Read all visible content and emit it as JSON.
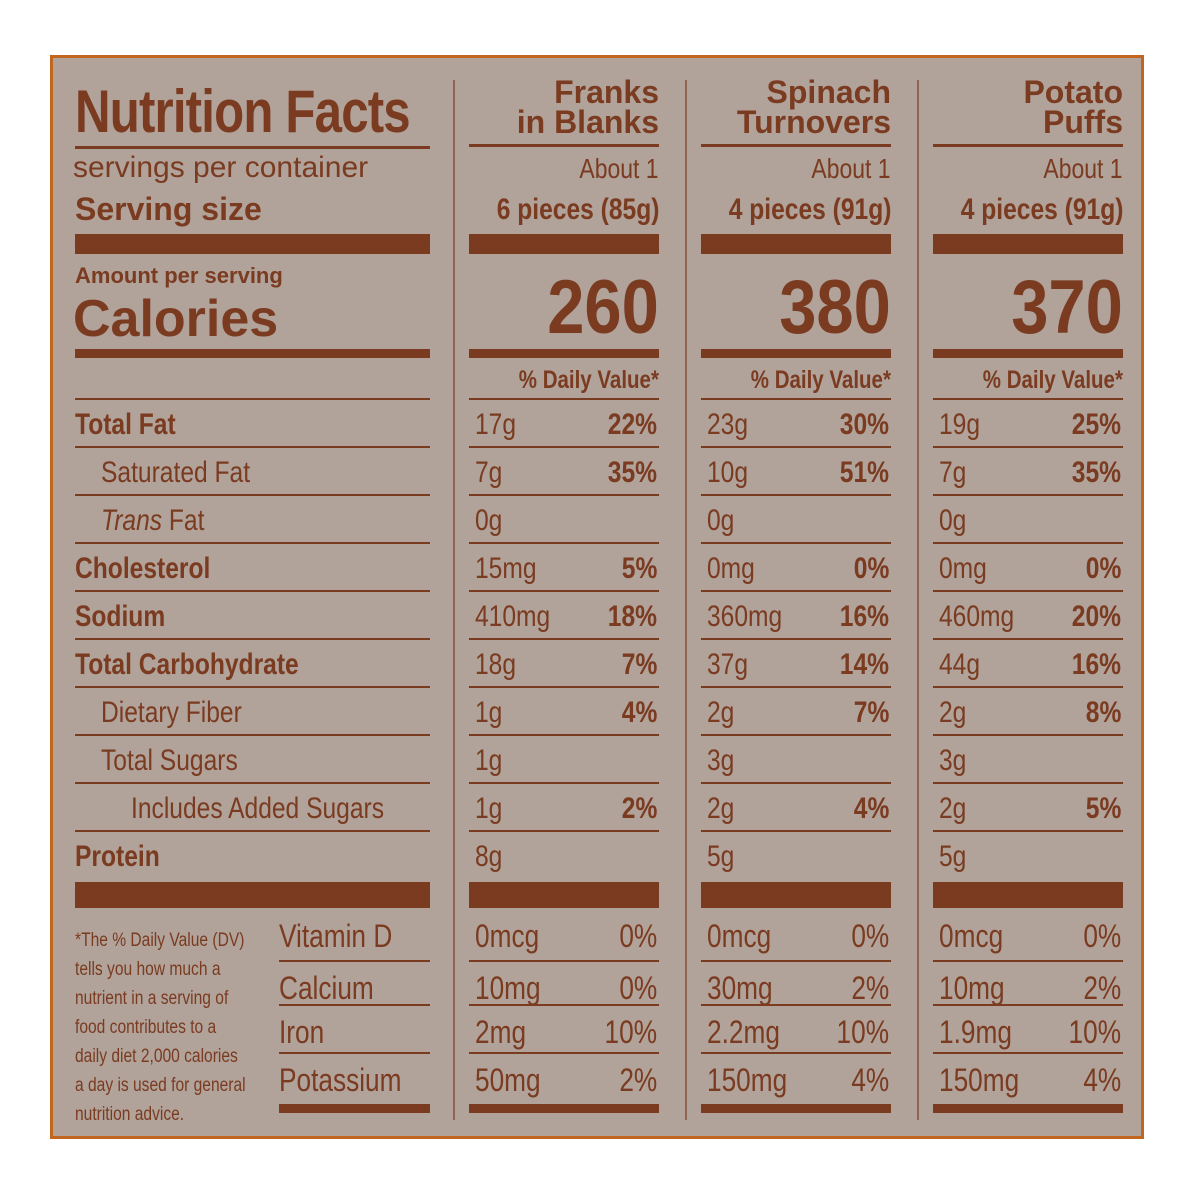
{
  "label": {
    "title": "Nutrition Facts",
    "servings_label": "servings per container",
    "serving_size_label": "Serving size",
    "amount_per_serving": "Amount per serving",
    "calories_label": "Calories",
    "dv_header": "% Daily Value*",
    "footnote": [
      "*The % Daily Value (DV)",
      "tells you how much a",
      "nutrient in a serving of",
      "food contributes to a",
      "daily diet 2,000 calories",
      "a day is used for general",
      "nutrition advice."
    ]
  },
  "nutrients": [
    {
      "label": "Total Fat",
      "style": "bold"
    },
    {
      "label": "Saturated Fat",
      "style": "indent1"
    },
    {
      "label": "Trans",
      "suffix": " Fat",
      "style": "indent1-italic"
    },
    {
      "label": "Cholesterol",
      "style": "bold"
    },
    {
      "label": "Sodium",
      "style": "bold"
    },
    {
      "label": "Total Carbohydrate",
      "style": "bold"
    },
    {
      "label": "Dietary Fiber",
      "style": "indent1"
    },
    {
      "label": "Total Sugars",
      "style": "indent1"
    },
    {
      "label": "Includes Added Sugars",
      "style": "indent2"
    },
    {
      "label": "Protein",
      "style": "bold"
    }
  ],
  "vitamins": [
    "Vitamin D",
    "Calcium",
    "Iron",
    "Potassium"
  ],
  "products": [
    {
      "name_line1": "Franks",
      "name_line2": "in Blanks",
      "servings": "About 1",
      "serving_size": "6 pieces (85g)",
      "calories": "260",
      "nutrients": [
        [
          "17g",
          "22%"
        ],
        [
          "7g",
          "35%"
        ],
        [
          "0g",
          ""
        ],
        [
          "15mg",
          "5%"
        ],
        [
          "410mg",
          "18%"
        ],
        [
          "18g",
          "7%"
        ],
        [
          "1g",
          "4%"
        ],
        [
          "1g",
          ""
        ],
        [
          "1g",
          "2%"
        ],
        [
          "8g",
          ""
        ]
      ],
      "vitamins": [
        [
          "0mcg",
          "0%"
        ],
        [
          "10mg",
          "0%"
        ],
        [
          "2mg",
          "10%"
        ],
        [
          "50mg",
          "2%"
        ]
      ]
    },
    {
      "name_line1": "Spinach",
      "name_line2": "Turnovers",
      "servings": "About 1",
      "serving_size": "4 pieces (91g)",
      "calories": "380",
      "nutrients": [
        [
          "23g",
          "30%"
        ],
        [
          "10g",
          "51%"
        ],
        [
          "0g",
          ""
        ],
        [
          "0mg",
          "0%"
        ],
        [
          "360mg",
          "16%"
        ],
        [
          "37g",
          "14%"
        ],
        [
          "2g",
          "7%"
        ],
        [
          "3g",
          ""
        ],
        [
          "2g",
          "4%"
        ],
        [
          "5g",
          ""
        ]
      ],
      "vitamins": [
        [
          "0mcg",
          "0%"
        ],
        [
          "30mg",
          "2%"
        ],
        [
          "2.2mg",
          "10%"
        ],
        [
          "150mg",
          "4%"
        ]
      ]
    },
    {
      "name_line1": "Potato",
      "name_line2": "Puffs",
      "servings": "About 1",
      "serving_size": "4 pieces (91g)",
      "calories": "370",
      "nutrients": [
        [
          "19g",
          "25%"
        ],
        [
          "7g",
          "35%"
        ],
        [
          "0g",
          ""
        ],
        [
          "0mg",
          "0%"
        ],
        [
          "460mg",
          "20%"
        ],
        [
          "44g",
          "16%"
        ],
        [
          "2g",
          "8%"
        ],
        [
          "3g",
          ""
        ],
        [
          "2g",
          "5%"
        ],
        [
          "5g",
          ""
        ]
      ],
      "vitamins": [
        [
          "0mcg",
          "0%"
        ],
        [
          "10mg",
          "2%"
        ],
        [
          "1.9mg",
          "10%"
        ],
        [
          "150mg",
          "4%"
        ]
      ]
    }
  ],
  "colors": {
    "panel": "#b1a29a",
    "ink": "#7a3b20",
    "border": "#c2661f"
  }
}
